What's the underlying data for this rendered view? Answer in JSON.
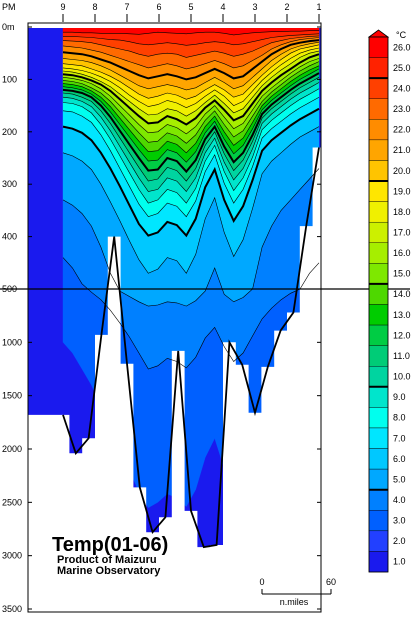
{
  "chart_data": {
    "type": "heatmap",
    "title": "Temp(01-06)",
    "subtitle_lines": [
      "Product of Maizuru",
      "Marine Observatory"
    ],
    "x_label_prefix": "PM",
    "stations": [
      "9",
      "8",
      "7",
      "6",
      "5",
      "4",
      "3",
      "2",
      "1"
    ],
    "y_labels_upper": [
      "0m",
      "100",
      "200",
      "300",
      "400"
    ],
    "y_labels_lower": [
      "500",
      "1000",
      "1500",
      "2000",
      "2500",
      "3000",
      "3500"
    ],
    "depth_scale_break_m": 500,
    "upper_depth_range_m": [
      0,
      500
    ],
    "lower_depth_range_m": [
      500,
      3500
    ],
    "isotherms_upper_m": [
      [
        0,
        0,
        0,
        0,
        0,
        0,
        0,
        0,
        0,
        0,
        0,
        0,
        0,
        0,
        0,
        0,
        0,
        0,
        0,
        0,
        0,
        0,
        0,
        0,
        0,
        0,
        0,
        0
      ],
      [
        10,
        10,
        11,
        11,
        12,
        12,
        12,
        13,
        14,
        12,
        10,
        11,
        12,
        13,
        11,
        10,
        10,
        12,
        15,
        13,
        11,
        10,
        9,
        9,
        8,
        8,
        7,
        7
      ],
      [
        18,
        18,
        19,
        20,
        22,
        24,
        25,
        28,
        32,
        34,
        32,
        30,
        32,
        35,
        33,
        30,
        28,
        30,
        34,
        32,
        28,
        24,
        20,
        18,
        16,
        15,
        14,
        13
      ],
      [
        26,
        27,
        28,
        30,
        34,
        38,
        42,
        46,
        52,
        56,
        52,
        50,
        52,
        58,
        54,
        50,
        46,
        50,
        56,
        52,
        46,
        38,
        30,
        26,
        22,
        20,
        18,
        17
      ],
      [
        36,
        38,
        40,
        44,
        48,
        54,
        60,
        66,
        72,
        78,
        74,
        70,
        74,
        80,
        76,
        70,
        64,
        70,
        78,
        74,
        64,
        54,
        42,
        34,
        28,
        24,
        22,
        20
      ],
      [
        48,
        50,
        52,
        56,
        62,
        68,
        76,
        84,
        92,
        98,
        94,
        90,
        94,
        100,
        96,
        88,
        80,
        88,
        98,
        94,
        80,
        66,
        52,
        42,
        34,
        30,
        27,
        25
      ],
      [
        60,
        62,
        64,
        68,
        74,
        82,
        92,
        102,
        112,
        118,
        114,
        110,
        114,
        120,
        116,
        106,
        96,
        106,
        118,
        112,
        96,
        80,
        64,
        52,
        42,
        36,
        32,
        29
      ],
      [
        70,
        72,
        74,
        80,
        86,
        94,
        104,
        116,
        128,
        136,
        132,
        126,
        130,
        138,
        132,
        120,
        110,
        120,
        134,
        128,
        110,
        92,
        76,
        62,
        50,
        42,
        38,
        34
      ],
      [
        78,
        80,
        83,
        88,
        95,
        104,
        116,
        130,
        142,
        152,
        148,
        140,
        145,
        154,
        146,
        132,
        120,
        132,
        150,
        142,
        122,
        102,
        86,
        72,
        60,
        50,
        44,
        40
      ],
      [
        84,
        86,
        90,
        96,
        104,
        114,
        128,
        142,
        156,
        168,
        166,
        156,
        160,
        170,
        160,
        144,
        130,
        146,
        164,
        156,
        134,
        112,
        96,
        82,
        70,
        58,
        50,
        46
      ],
      [
        90,
        92,
        96,
        102,
        110,
        122,
        138,
        154,
        170,
        184,
        182,
        170,
        176,
        186,
        174,
        154,
        140,
        158,
        178,
        170,
        146,
        122,
        106,
        92,
        80,
        68,
        58,
        52
      ],
      [
        96,
        98,
        102,
        108,
        118,
        132,
        150,
        168,
        186,
        202,
        200,
        186,
        192,
        204,
        190,
        166,
        150,
        172,
        194,
        184,
        158,
        132,
        116,
        102,
        88,
        76,
        66,
        60
      ],
      [
        102,
        104,
        108,
        116,
        126,
        142,
        162,
        182,
        202,
        220,
        218,
        202,
        208,
        222,
        206,
        178,
        160,
        186,
        210,
        198,
        170,
        142,
        124,
        110,
        96,
        84,
        74,
        66
      ],
      [
        108,
        110,
        114,
        122,
        134,
        152,
        174,
        196,
        218,
        238,
        236,
        218,
        224,
        240,
        222,
        190,
        170,
        200,
        226,
        212,
        182,
        150,
        132,
        118,
        104,
        92,
        82,
        74
      ],
      [
        114,
        116,
        120,
        128,
        142,
        162,
        186,
        210,
        234,
        256,
        254,
        234,
        240,
        258,
        238,
        202,
        180,
        214,
        242,
        226,
        194,
        158,
        140,
        126,
        112,
        100,
        90,
        80
      ],
      [
        120,
        122,
        126,
        134,
        150,
        172,
        198,
        224,
        250,
        274,
        272,
        250,
        256,
        276,
        254,
        214,
        190,
        228,
        258,
        240,
        206,
        166,
        148,
        134,
        120,
        108,
        98,
        88
      ],
      [
        126,
        128,
        134,
        142,
        160,
        184,
        212,
        240,
        268,
        294,
        290,
        268,
        274,
        294,
        270,
        226,
        200,
        242,
        274,
        254,
        218,
        174,
        156,
        142,
        128,
        116,
        106,
        96
      ],
      [
        134,
        136,
        142,
        152,
        172,
        198,
        228,
        258,
        288,
        314,
        310,
        288,
        294,
        314,
        288,
        240,
        212,
        258,
        292,
        270,
        232,
        184,
        166,
        152,
        138,
        126,
        116,
        106
      ],
      [
        144,
        146,
        152,
        164,
        186,
        214,
        246,
        278,
        310,
        336,
        330,
        310,
        316,
        336,
        308,
        256,
        226,
        276,
        312,
        288,
        248,
        196,
        178,
        164,
        150,
        138,
        128,
        118
      ],
      [
        160,
        162,
        170,
        182,
        206,
        236,
        270,
        304,
        338,
        362,
        356,
        336,
        342,
        362,
        332,
        276,
        244,
        298,
        336,
        310,
        266,
        212,
        194,
        180,
        166,
        154,
        144,
        134
      ],
      [
        190,
        194,
        202,
        216,
        240,
        270,
        304,
        340,
        376,
        398,
        392,
        372,
        378,
        398,
        366,
        306,
        272,
        330,
        370,
        342,
        292,
        236,
        216,
        202,
        188,
        176,
        166,
        156
      ],
      [
        240,
        246,
        256,
        272,
        300,
        334,
        370,
        408,
        444,
        470,
        462,
        440,
        446,
        470,
        434,
        366,
        326,
        392,
        438,
        406,
        346,
        280,
        256,
        240,
        224,
        210,
        200,
        190
      ],
      [
        330,
        340,
        356,
        380,
        420,
        470,
        520,
        570,
        620,
        660,
        650,
        620,
        630,
        660,
        610,
        520,
        460,
        550,
        620,
        580,
        500,
        420,
        380,
        350,
        330,
        310,
        290,
        270
      ],
      [
        440,
        460,
        490,
        530,
        600,
        700,
        820,
        950,
        1100,
        1250,
        1220,
        1150,
        1180,
        1240,
        1140,
        960,
        860,
        1040,
        1180,
        1100,
        940,
        780,
        680,
        600,
        540,
        500,
        470,
        450
      ],
      [
        1000,
        1100,
        1250,
        1400,
        1600,
        1800,
        2000,
        2200,
        2400,
        2550,
        2500,
        2420,
        2460,
        2540,
        2380,
        2080,
        1900,
        2180,
        2420,
        2300,
        2000,
        1700,
        1460,
        1260,
        1100,
        980,
        900,
        860
      ]
    ],
    "bottom_profile_m": [
      1680,
      2040,
      1900,
      930,
      400,
      1200,
      2360,
      2780,
      2640,
      1080,
      2580,
      2920,
      2900,
      1000,
      1210,
      1660,
      1230,
      890,
      720,
      380,
      230
    ],
    "colorbar": {
      "unit": "°C",
      "min": 1.0,
      "max": 26.0,
      "step": 1.0,
      "labels": [
        "26.0",
        "25.0",
        "24.0",
        "23.0",
        "22.0",
        "21.0",
        "20.0",
        "19.0",
        "18.0",
        "17.0",
        "16.0",
        "15.0",
        "14.0",
        "13.0",
        "12.0",
        "11.0",
        "10.0",
        "9.0",
        "8.0",
        "7.0",
        "6.0",
        "5.0",
        "4.0",
        "3.0",
        "2.0",
        "1.0"
      ],
      "colors": [
        "#ff0000",
        "#ff2200",
        "#ff4000",
        "#ff6a00",
        "#ff8c00",
        "#ffa500",
        "#ffc400",
        "#ffe600",
        "#f0f000",
        "#ccf000",
        "#a6ee00",
        "#7ee800",
        "#4ed800",
        "#00cc00",
        "#00cc44",
        "#00cc77",
        "#00d4a0",
        "#00e5cc",
        "#00ffee",
        "#00e6ff",
        "#00c8ff",
        "#00a8ff",
        "#0080ff",
        "#0060ff",
        "#2240ff",
        "#1a1aee"
      ]
    },
    "scale_bar": {
      "labels": [
        "0",
        "60"
      ],
      "unit": "n.miles"
    }
  }
}
